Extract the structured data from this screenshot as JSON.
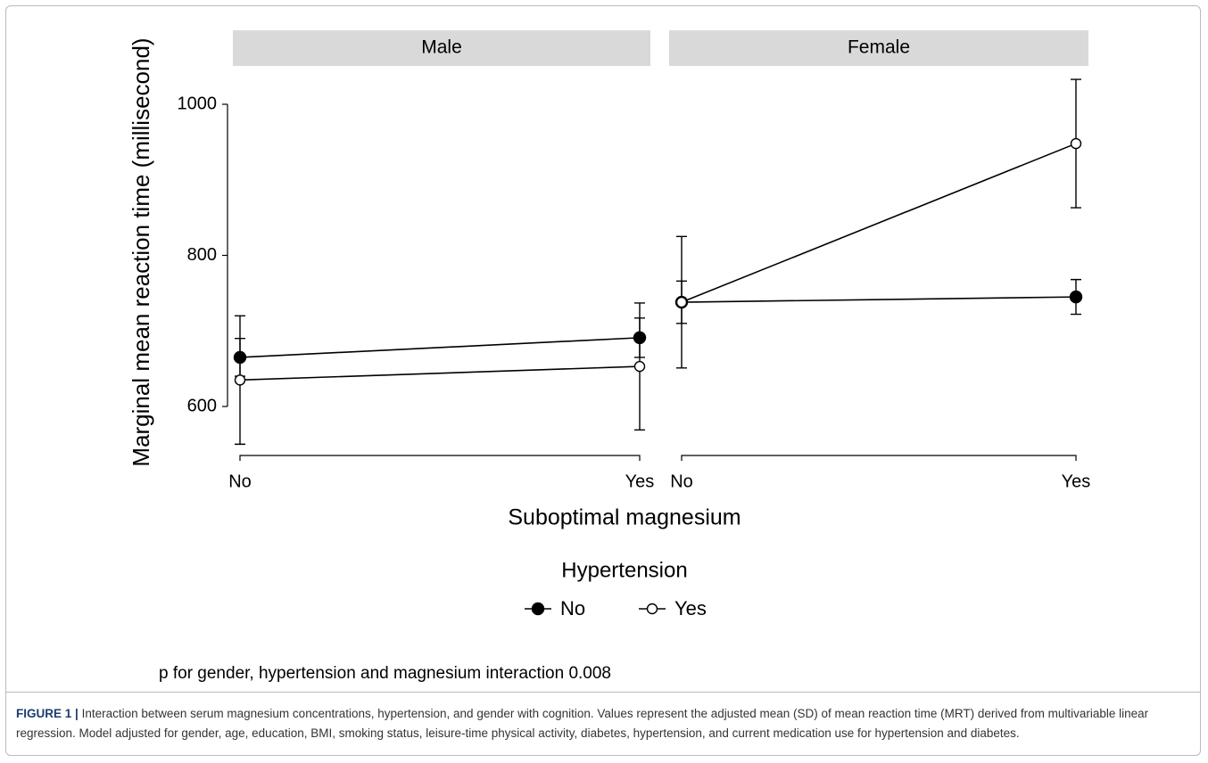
{
  "chart_data": {
    "type": "line",
    "ylabel": "Marginal mean reaction time (millisecond)",
    "xlabel": "Suboptimal magnesium",
    "legend_title": "Hypertension",
    "annotation": "p for gender, hypertension and magnesium interaction 0.008",
    "categories": [
      "No",
      "Yes"
    ],
    "ylim": [
      535,
      1050
    ],
    "yticks": [
      600,
      800,
      1000
    ],
    "color": "#000000",
    "panels": [
      {
        "title": "Male",
        "series": [
          {
            "name": "No",
            "marker": "filled",
            "values": [
              665,
              691
            ],
            "errors": [
              25,
              26
            ]
          },
          {
            "name": "Yes",
            "marker": "open",
            "values": [
              635,
              653
            ],
            "errors": [
              85,
              84
            ]
          }
        ]
      },
      {
        "title": "Female",
        "series": [
          {
            "name": "No",
            "marker": "filled",
            "values": [
              738,
              745
            ],
            "errors": [
              28,
              23
            ]
          },
          {
            "name": "Yes",
            "marker": "open",
            "values": [
              738,
              948
            ],
            "errors": [
              87,
              85
            ]
          }
        ]
      }
    ]
  },
  "caption": {
    "label": "FIGURE 1 |",
    "text": "Interaction between serum magnesium concentrations, hypertension, and gender with cognition. Values represent the adjusted mean (SD) of mean reaction time (MRT) derived from multivariable linear regression. Model adjusted for gender, age, education, BMI, smoking status, leisure-time physical activity, diabetes, hypertension, and current medication use for hypertension and diabetes."
  }
}
